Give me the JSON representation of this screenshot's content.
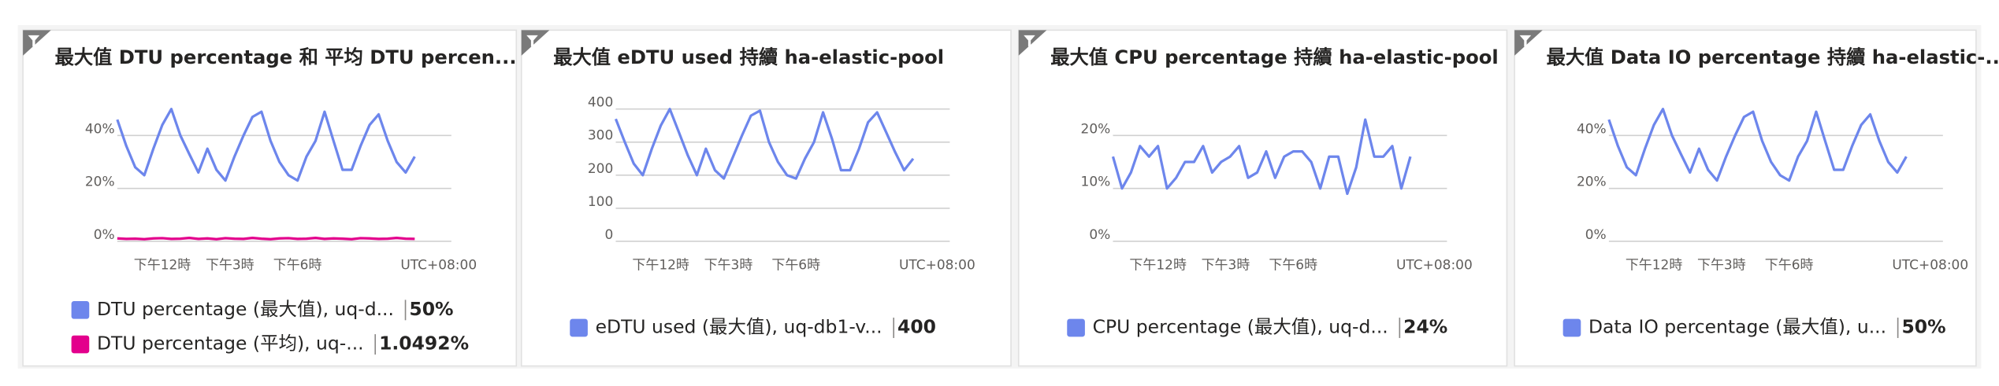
{
  "chart_data": [
    {
      "type": "line",
      "title": "最大值 DTU percentage 和 平均 DTU percen...",
      "xlim": [
        10,
        24.6
      ],
      "xticks": [
        {
          "value": 12,
          "label": "下午12時"
        },
        {
          "value": 15,
          "label": "下午3時"
        },
        {
          "value": 18,
          "label": "下午6時"
        }
      ],
      "x_note": "UTC+08:00",
      "ylim": [
        0,
        50
      ],
      "yticks": [
        {
          "value": 0,
          "label": "0%"
        },
        {
          "value": 20,
          "label": "20%"
        },
        {
          "value": 40,
          "label": "40%"
        }
      ],
      "grid": true,
      "x": [
        10,
        10.4,
        10.8,
        11.2,
        11.6,
        12,
        12.4,
        12.8,
        13.2,
        13.6,
        14,
        14.4,
        14.8,
        15.2,
        15.6,
        16,
        16.4,
        16.8,
        17.2,
        17.6,
        18,
        18.4,
        18.8,
        19.2,
        19.6,
        20,
        20.4,
        20.8,
        21.2,
        21.6,
        22,
        22.4,
        22.8,
        23.2
      ],
      "series": [
        {
          "name": "DTU percentage (最大值), uq-d...",
          "color": "#6d86ec",
          "summary": "50%",
          "values": [
            46,
            36,
            28,
            25,
            35,
            44,
            50,
            40,
            33,
            26,
            35,
            27,
            23,
            32,
            40,
            47,
            49,
            38,
            30,
            25,
            23,
            32,
            38,
            49,
            38,
            27,
            27,
            36,
            44,
            48,
            38,
            30,
            26,
            32
          ]
        },
        {
          "name": "DTU percentage (平均), uq-...",
          "color": "#e3008c",
          "summary": "1.0492%",
          "values": [
            1.1,
            0.9,
            1.0,
            0.8,
            1.1,
            1.2,
            0.9,
            1.0,
            1.3,
            0.9,
            1.1,
            0.8,
            1.2,
            1.0,
            0.9,
            1.3,
            1.0,
            0.8,
            1.1,
            1.2,
            0.9,
            1.0,
            1.3,
            0.9,
            1.1,
            1.0,
            0.8,
            1.2,
            1.1,
            0.9,
            1.0,
            1.3,
            1.0,
            0.9
          ]
        }
      ]
    },
    {
      "type": "line",
      "title": "最大值 eDTU used 持續 ha-elastic-pool",
      "xlim": [
        10,
        24.6
      ],
      "xticks": [
        {
          "value": 12,
          "label": "下午12時"
        },
        {
          "value": 15,
          "label": "下午3時"
        },
        {
          "value": 18,
          "label": "下午6時"
        }
      ],
      "x_note": "UTC+08:00",
      "ylim": [
        0,
        400
      ],
      "yticks": [
        0,
        100,
        200,
        300,
        400
      ],
      "grid": true,
      "x": [
        10,
        10.4,
        10.8,
        11.2,
        11.6,
        12,
        12.4,
        12.8,
        13.2,
        13.6,
        14,
        14.4,
        14.8,
        15.2,
        15.6,
        16,
        16.4,
        16.8,
        17.2,
        17.6,
        18,
        18.4,
        18.8,
        19.2,
        19.6,
        20,
        20.4,
        20.8,
        21.2,
        21.6,
        22,
        22.4,
        22.8,
        23.2
      ],
      "series": [
        {
          "name": "eDTU used (最大值), uq-db1-v...",
          "color": "#6d86ec",
          "summary": "400",
          "values": [
            370,
            300,
            235,
            200,
            280,
            350,
            400,
            330,
            260,
            200,
            280,
            215,
            190,
            255,
            320,
            380,
            395,
            300,
            240,
            200,
            190,
            250,
            300,
            390,
            310,
            215,
            215,
            280,
            360,
            390,
            330,
            270,
            215,
            250
          ]
        }
      ]
    },
    {
      "type": "line",
      "title": "最大值 CPU percentage 持續 ha-elastic-pool",
      "xlim": [
        10,
        24.6
      ],
      "xticks": [
        {
          "value": 12,
          "label": "下午12時"
        },
        {
          "value": 15,
          "label": "下午3時"
        },
        {
          "value": 18,
          "label": "下午6時"
        }
      ],
      "x_note": "UTC+08:00",
      "ylim": [
        0,
        25
      ],
      "yticks": [
        {
          "value": 0,
          "label": "0%"
        },
        {
          "value": 10,
          "label": "10%"
        },
        {
          "value": 20,
          "label": "20%"
        }
      ],
      "grid": true,
      "x": [
        10,
        10.4,
        10.8,
        11.2,
        11.6,
        12,
        12.4,
        12.8,
        13.2,
        13.6,
        14,
        14.4,
        14.8,
        15.2,
        15.6,
        16,
        16.4,
        16.8,
        17.2,
        17.6,
        18,
        18.4,
        18.8,
        19.2,
        19.6,
        20,
        20.4,
        20.8,
        21.2,
        21.6,
        22,
        22.4,
        22.8,
        23.2
      ],
      "series": [
        {
          "name": "CPU percentage (最大值), uq-d...",
          "color": "#6d86ec",
          "summary": "24%",
          "values": [
            16,
            10,
            13,
            18,
            16,
            18,
            10,
            12,
            15,
            15,
            18,
            13,
            15,
            16,
            18,
            12,
            13,
            17,
            12,
            16,
            17,
            17,
            15,
            10,
            16,
            16,
            9,
            14,
            23,
            16,
            16,
            18,
            10,
            16
          ]
        }
      ]
    },
    {
      "type": "line",
      "title": "最大值 Data IO percentage 持續 ha-elastic-...",
      "xlim": [
        10,
        24.6
      ],
      "xticks": [
        {
          "value": 12,
          "label": "下午12時"
        },
        {
          "value": 15,
          "label": "下午3時"
        },
        {
          "value": 18,
          "label": "下午6時"
        }
      ],
      "x_note": "UTC+08:00",
      "ylim": [
        0,
        50
      ],
      "yticks": [
        {
          "value": 0,
          "label": "0%"
        },
        {
          "value": 20,
          "label": "20%"
        },
        {
          "value": 40,
          "label": "40%"
        }
      ],
      "grid": true,
      "x": [
        10,
        10.4,
        10.8,
        11.2,
        11.6,
        12,
        12.4,
        12.8,
        13.2,
        13.6,
        14,
        14.4,
        14.8,
        15.2,
        15.6,
        16,
        16.4,
        16.8,
        17.2,
        17.6,
        18,
        18.4,
        18.8,
        19.2,
        19.6,
        20,
        20.4,
        20.8,
        21.2,
        21.6,
        22,
        22.4,
        22.8,
        23.2
      ],
      "series": [
        {
          "name": "Data IO percentage (最大值), u...",
          "color": "#6d86ec",
          "summary": "50%",
          "values": [
            46,
            36,
            28,
            25,
            35,
            44,
            50,
            40,
            33,
            26,
            35,
            27,
            23,
            32,
            40,
            47,
            49,
            38,
            30,
            25,
            23,
            32,
            38,
            49,
            38,
            27,
            27,
            36,
            44,
            48,
            38,
            30,
            26,
            32
          ]
        }
      ]
    }
  ]
}
